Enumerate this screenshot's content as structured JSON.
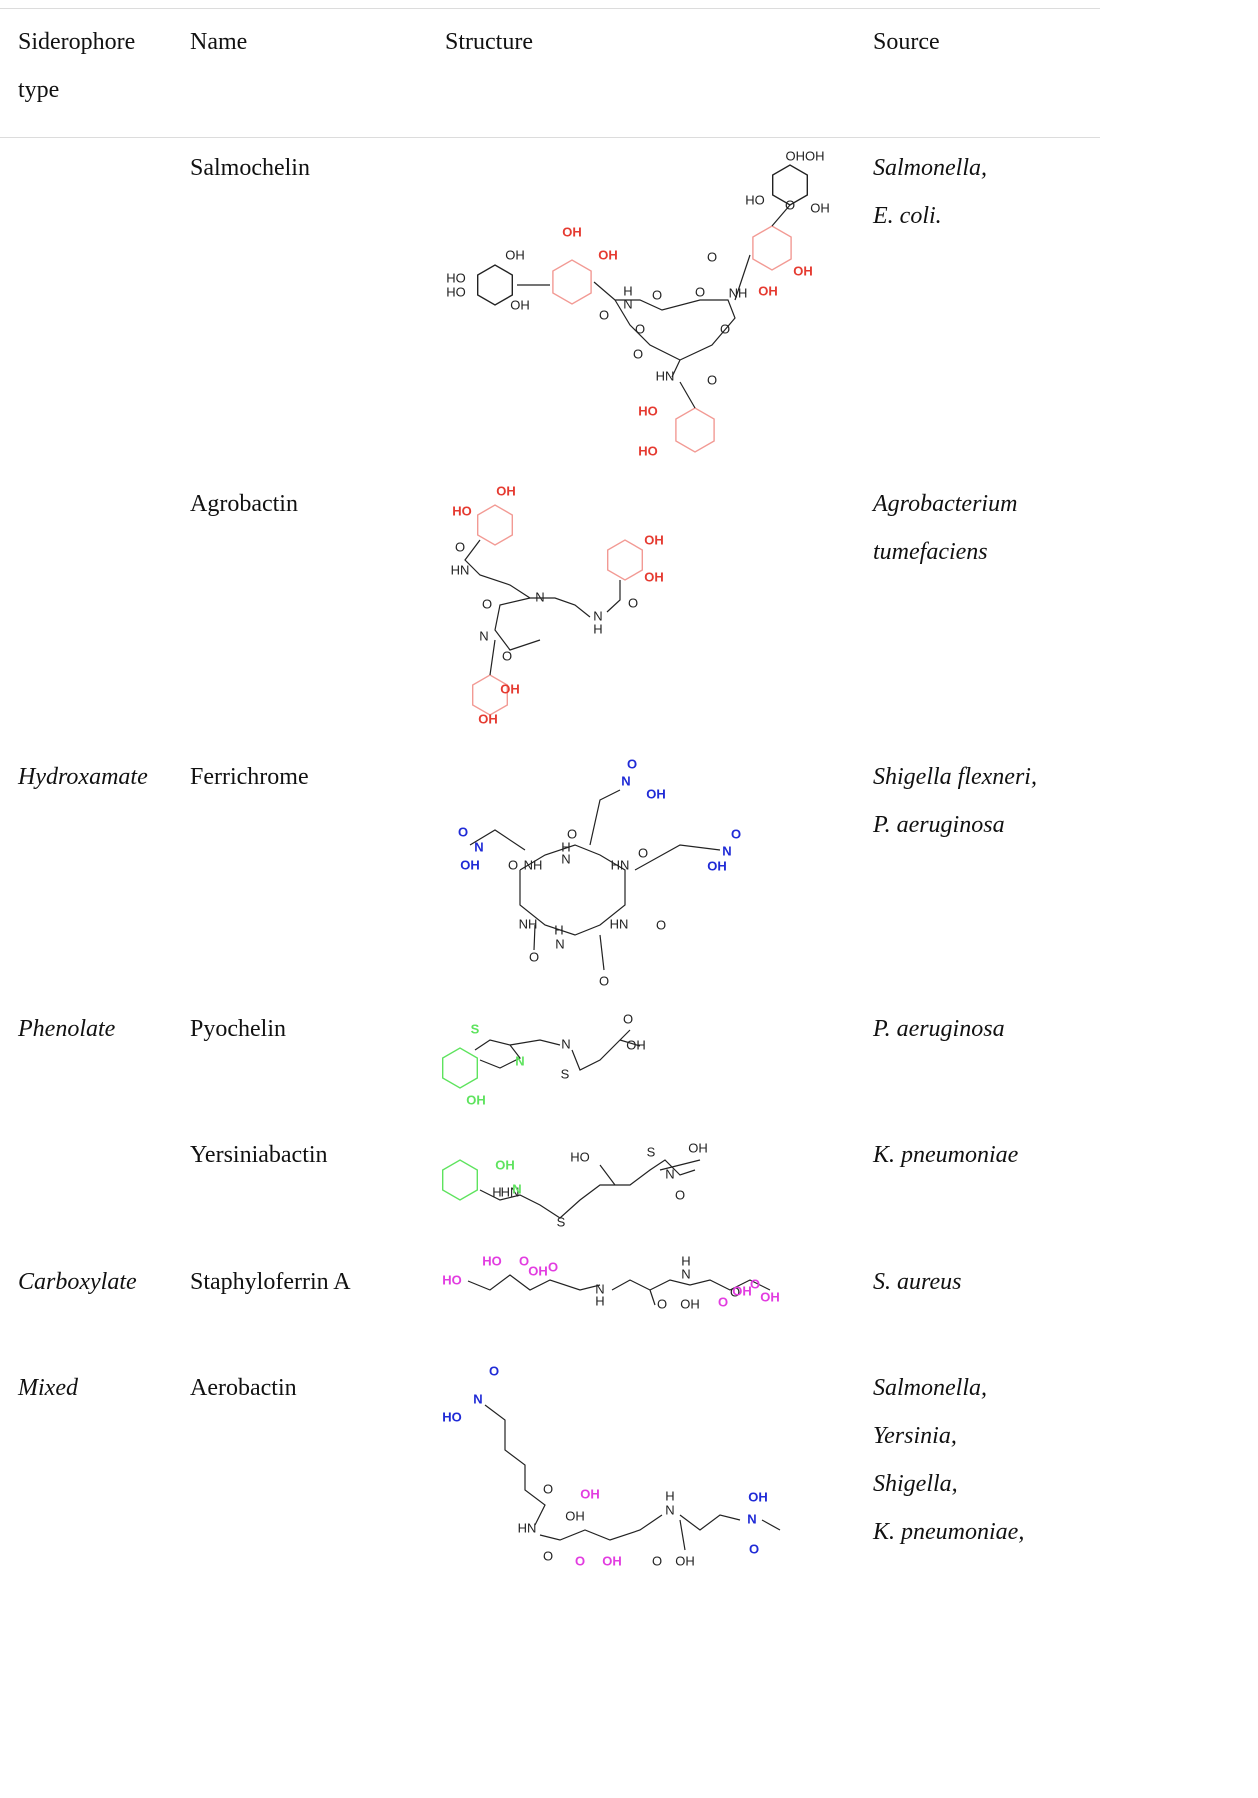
{
  "table": {
    "header": [
      "Siderophore type",
      "Name",
      "Structure",
      "Source"
    ],
    "rows": [
      {
        "name": "Salmochelin",
        "source": [
          "Salmonella,",
          "E. coli."
        ],
        "structure_labels": [
          "OH",
          "OH",
          "HO",
          "HO",
          "OH",
          "OH",
          "H",
          "N",
          "O",
          "O",
          "O",
          "NH",
          "OH",
          "OH",
          "HO",
          "O",
          "OH",
          "OHOH",
          "O",
          "O",
          "O",
          "O",
          "HN",
          "O",
          "HO",
          "HO"
        ]
      },
      {
        "name": "Agrobactin",
        "source": [
          "Agrobacterium",
          "tumefaciens"
        ],
        "structure_labels": [
          "OH",
          "HO",
          "O",
          "HN",
          "OH",
          "OH",
          "O",
          "N",
          "N",
          "H",
          "O",
          "N",
          "O",
          "OH",
          "OH"
        ]
      },
      {
        "type": "Hydroxamate",
        "name": "Ferrichrome",
        "source": [
          "Shigella flexneri,",
          "P. aeruginosa"
        ],
        "structure_labels": [
          "O",
          "N",
          "OH",
          "O",
          "N",
          "OH",
          "O",
          "O",
          "H",
          "N",
          "O",
          "NH",
          "HN",
          "O",
          "N",
          "OH",
          "NH",
          "HN",
          "O",
          "H",
          "N",
          "O",
          "O"
        ]
      },
      {
        "type": "Phenolate",
        "name": "Pyochelin",
        "source": [
          "P. aeruginosa"
        ],
        "structure_labels": [
          "S",
          "N",
          "OH",
          "N",
          "S",
          "O",
          "OH"
        ]
      },
      {
        "name": "Yersiniabactin",
        "source": [
          "K. pneumoniae"
        ],
        "structure_labels": [
          "OH",
          "HO",
          "S",
          "OH",
          "N",
          "O",
          "H",
          "HN",
          "N",
          "S"
        ]
      },
      {
        "type": "Carboxylate",
        "name": "Staphyloferrin A",
        "source": [
          "S. aureus"
        ],
        "structure_labels": [
          "HO",
          "HO",
          "O",
          "OH",
          "O",
          "N",
          "H",
          "H",
          "N",
          "O",
          "O",
          "OH",
          "O",
          "OH",
          "OH",
          "O"
        ]
      },
      {
        "type": "Mixed",
        "name": "Aerobactin",
        "source": [
          "Salmonella,",
          "Yersinia,",
          "Shigella,",
          "K. pneumoniae,"
        ],
        "structure_labels": [
          "O",
          "N",
          "HO",
          "O",
          "OH",
          "OH",
          "HN",
          "H",
          "N",
          "OH",
          "N",
          "O",
          "O",
          "O",
          "OH",
          "O",
          "OH"
        ]
      }
    ]
  }
}
